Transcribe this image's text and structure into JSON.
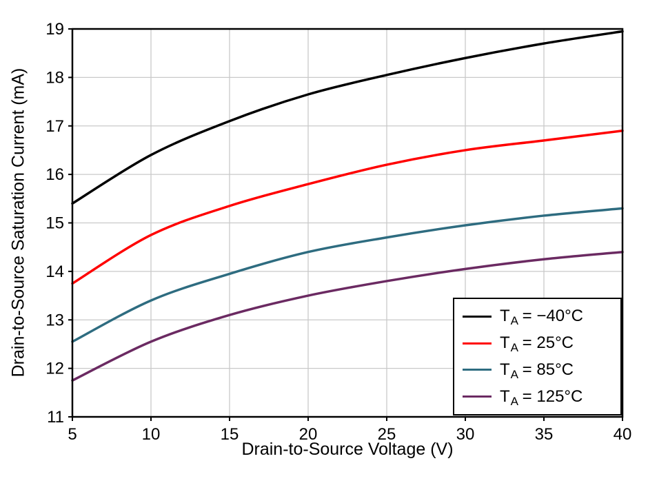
{
  "chart_data": {
    "type": "line",
    "xlabel": "Drain-to-Source Voltage (V)",
    "ylabel": "Drain-to-Source Saturation Current (mA)",
    "xlim": [
      5,
      40
    ],
    "ylim": [
      11,
      19
    ],
    "xticks": [
      5,
      10,
      15,
      20,
      25,
      30,
      35,
      40
    ],
    "yticks": [
      11,
      12,
      13,
      14,
      15,
      16,
      17,
      18,
      19
    ],
    "grid": true,
    "legend_position": "bottom-right",
    "x": [
      5,
      10,
      15,
      20,
      25,
      30,
      35,
      40
    ],
    "series": [
      {
        "name": "TA = −40°C",
        "label_base": "T",
        "label_sub": "A",
        "label_rest": " = −40°C",
        "color": "#000000",
        "values": [
          15.4,
          16.4,
          17.1,
          17.65,
          18.05,
          18.4,
          18.7,
          18.95
        ]
      },
      {
        "name": "TA = 25°C",
        "label_base": "T",
        "label_sub": "A",
        "label_rest": " = 25°C",
        "color": "#ff0000",
        "values": [
          13.75,
          14.75,
          15.35,
          15.8,
          16.2,
          16.5,
          16.7,
          16.9
        ]
      },
      {
        "name": "TA = 85°C",
        "label_base": "T",
        "label_sub": "A",
        "label_rest": " = 85°C",
        "color": "#2e6c80",
        "values": [
          12.55,
          13.4,
          13.95,
          14.4,
          14.7,
          14.95,
          15.15,
          15.3
        ]
      },
      {
        "name": "TA = 125°C",
        "label_base": "T",
        "label_sub": "A",
        "label_rest": " = 125°C",
        "color": "#6b2a62",
        "values": [
          11.75,
          12.55,
          13.1,
          13.5,
          13.8,
          14.05,
          14.25,
          14.4
        ]
      }
    ],
    "style": {
      "grid_color": "#c9c9c9",
      "frame_color": "#000000",
      "tick_font_px": 24,
      "line_width": 3.5
    }
  }
}
